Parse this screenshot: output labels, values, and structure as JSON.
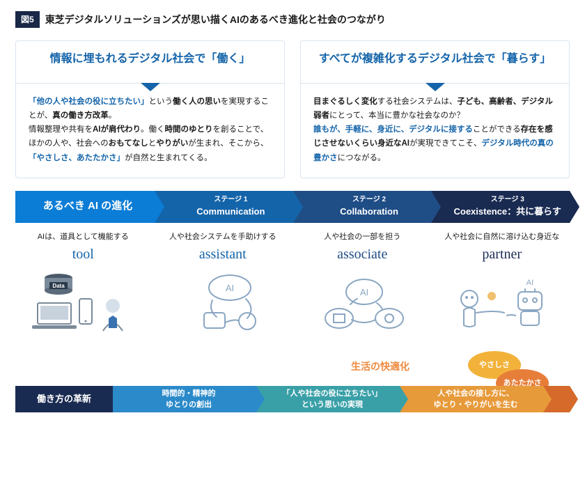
{
  "fig_label": "図5",
  "fig_title": "東芝デジタルソリューションズが思い描くAIのあるべき進化と社会のつながり",
  "cards": {
    "work": {
      "title": "情報に埋もれるデジタル社会で「働く」",
      "body_html": "<span class='hl'>「他の人や社会の役に立ちたい」</span>という<b>働く人の思い</b>を実現することが、<b>真の働き方改革</b>。<br>情報整理や共有を<b>AIが肩代わり</b>。働く<b>時間のゆとり</b>を創ることで、ほかの人や、社会への<b>おもてなし</b>と<b>やりがい</b>が生まれ、そこから、<span class='hl'>「やさしさ、あたたかさ」</span>が自然と生まれてくる。"
    },
    "live": {
      "title": "すべてが複雑化するデジタル社会で「暮らす」",
      "body_html": "<b>目まぐるしく変化</b>する社会システムは、<b>子ども、高齢者、デジタル弱者</b>にとって、本当に豊かな社会なのか？<br><span class='hl'>誰もが、手軽に、身近に、デジタルに接する</span>ことができる<b>存在を感じさせないくらい身近なAI</b>が実現できてこそ、<span class='hl'>デジタル時代の真の豊かさ</span>につながる。"
    }
  },
  "stages": {
    "s0": {
      "label": "あるべき AI の進化",
      "bg": "#0b7dd6"
    },
    "s1": {
      "super": "ステージ 1",
      "label": "Communication",
      "bg": "#1464aa"
    },
    "s2": {
      "super": "ステージ 2",
      "label": "Collaboration",
      "bg": "#1f4d86"
    },
    "s3": {
      "super": "ステージ 3",
      "label": "Coexistence：共に暮らす",
      "bg": "#1a2b52"
    }
  },
  "cols": {
    "c0": {
      "sub": "AIは、道具として機能する",
      "role": "tool",
      "color": "#1464aa"
    },
    "c1": {
      "sub": "人や社会システムを手助けする",
      "role": "assistant",
      "color": "#1464aa"
    },
    "c2": {
      "sub": "人や社会の一部を担う",
      "role": "associate",
      "color": "#1f4d86"
    },
    "c3": {
      "sub": "人や社会に自然に溶け込む身近な",
      "role": "partner",
      "color": "#1a2b52"
    }
  },
  "tool_badge": "Data",
  "lifelabel": {
    "text": "生活の快適化",
    "color": "#ef8a3d"
  },
  "flow": {
    "label": "働き方の革新",
    "label_bg": "#1a2b52",
    "steps": [
      {
        "text": "時間的・精神的\nゆとりの創出",
        "bg": "#2b8ac9"
      },
      {
        "text": "「人や社会の役に立ちたい」\nという思いの実現",
        "bg": "#3aa0a8"
      },
      {
        "text": "人や社会の接し方に、\nゆとり・やりがいを生む",
        "bg": "#e79a3a"
      }
    ],
    "tail_bg": "#d56a2a"
  },
  "bubbles": {
    "b1": {
      "text": "やさしさ",
      "bg": "#f2b23a"
    },
    "b2": {
      "text": "あたたかさ",
      "bg": "#e67e3a"
    }
  },
  "sketch_stroke": "#8aa6c2"
}
